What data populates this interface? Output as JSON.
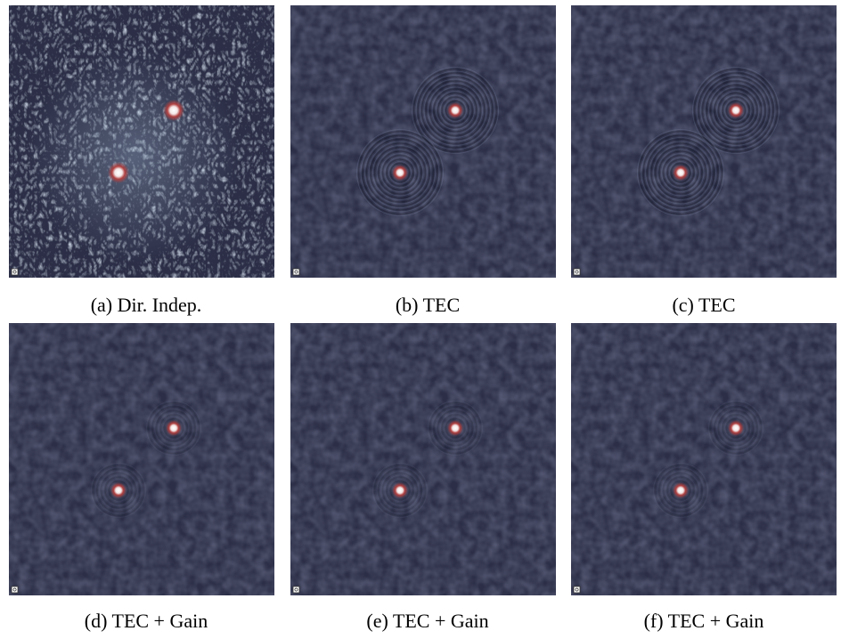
{
  "figure": {
    "panels": [
      {
        "caption": "(a) Dir. Indep."
      },
      {
        "caption": "(b) TEC"
      },
      {
        "caption": "(c) TEC"
      },
      {
        "caption": "(d) TEC + Gain"
      },
      {
        "caption": "(e) TEC + Gain"
      },
      {
        "caption": "(f) TEC + Gain"
      }
    ]
  }
}
